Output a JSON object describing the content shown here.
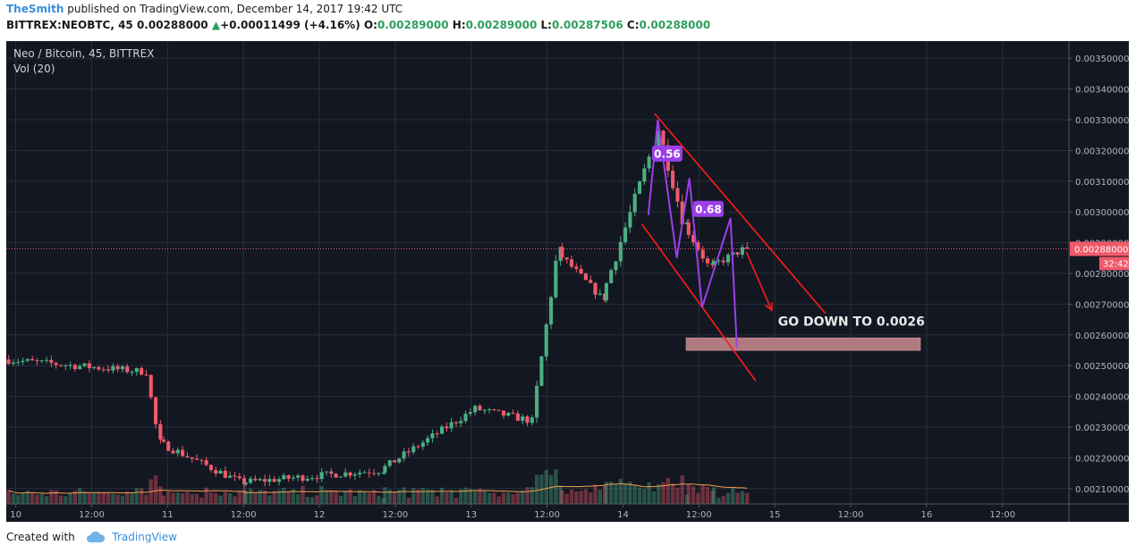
{
  "header": {
    "author": "TheSmith",
    "published_text": "published on TradingView.com, December 14, 2017 19:42 UTC",
    "symbol_line_prefix": "BITTREX:NEOBTC, 45",
    "last_value": "0.00288000",
    "change": "+0.00011499 (+4.16%)",
    "open_label": "O:",
    "open_value": "0.00289000",
    "high_label": "H:",
    "high_value": "0.00289000",
    "low_label": "L:",
    "low_value": "0.00287506",
    "close_label": "C:",
    "close_value": "0.00288000",
    "change_icon": "triangle-up-icon"
  },
  "legend": {
    "series_title": "Neo / Bitcoin, 45, BITTREX",
    "volume_title": "Vol (20)"
  },
  "footer": {
    "created_with": "Created with",
    "brand": "TradingView",
    "brand_icon": "cloud-icon"
  },
  "colors": {
    "background": "#131722",
    "up": "#4bae84",
    "down": "#ef5a6a",
    "pattern_line": "#9b3fe8",
    "channel": "#ff1a1a",
    "target_zone": "#b07a80",
    "volume_ma": "#f2a14b"
  },
  "chart_data": {
    "type": "candlestick",
    "y_axis": {
      "min": 0.00205,
      "max": 0.00355,
      "tick_labels": [
        "0.00350000",
        "0.00340000",
        "0.00330000",
        "0.00320000",
        "0.00310000",
        "0.00300000",
        "0.00290000",
        "0.00280000",
        "0.00270000",
        "0.00260000",
        "0.00250000",
        "0.00240000",
        "0.00230000",
        "0.00220000",
        "0.00210000"
      ]
    },
    "x_axis": {
      "tick_labels": [
        "10",
        "12:00",
        "11",
        "12:00",
        "12",
        "12:00",
        "13",
        "12:00",
        "14",
        "12:00",
        "15",
        "12:00",
        "16",
        "12:00"
      ],
      "domain": [
        "2017-12-09 22:30",
        "2017-12-16 22:30"
      ]
    },
    "last_price": {
      "value": 0.00288,
      "label": "0.00288000",
      "countdown": "32:42"
    },
    "candles_segments": [
      {
        "from": "2017-12-09 22:30",
        "to": "2017-12-10 21:00",
        "start": 0.00252,
        "end": 0.00248
      },
      {
        "from": "2017-12-10 21:00",
        "to": "2017-12-10 23:00",
        "start": 0.00248,
        "end": 0.00225
      },
      {
        "from": "2017-12-10 23:00",
        "to": "2017-12-11 12:00",
        "start": 0.00225,
        "end": 0.00212
      },
      {
        "from": "2017-12-11 12:00",
        "to": "2017-12-12 10:00",
        "start": 0.00212,
        "end": 0.00216
      },
      {
        "from": "2017-12-12 10:00",
        "to": "2017-12-13 01:00",
        "start": 0.00216,
        "end": 0.00236
      },
      {
        "from": "2017-12-13 01:00",
        "to": "2017-12-13 10:00",
        "start": 0.00236,
        "end": 0.00232
      },
      {
        "from": "2017-12-13 10:00",
        "to": "2017-12-13 14:00",
        "start": 0.00232,
        "end": 0.00287
      },
      {
        "from": "2017-12-13 14:00",
        "to": "2017-12-13 21:00",
        "start": 0.00287,
        "end": 0.00272
      },
      {
        "from": "2017-12-13 21:00",
        "to": "2017-12-14 06:00",
        "start": 0.00272,
        "end": 0.00327
      },
      {
        "from": "2017-12-14 06:00",
        "to": "2017-12-14 10:00",
        "start": 0.00327,
        "end": 0.00296
      },
      {
        "from": "2017-12-14 10:00",
        "to": "2017-12-14 14:00",
        "start": 0.00296,
        "end": 0.00282
      },
      {
        "from": "2017-12-14 14:00",
        "to": "2017-12-14 19:30",
        "start": 0.00282,
        "end": 0.00288
      }
    ],
    "pattern_points": [
      {
        "t": "2017-12-14 04:00",
        "p": 0.00299
      },
      {
        "t": "2017-12-14 05:30",
        "p": 0.0033
      },
      {
        "t": "2017-12-14 08:30",
        "p": 0.00285
      },
      {
        "t": "2017-12-14 10:30",
        "p": 0.00311
      },
      {
        "t": "2017-12-14 12:30",
        "p": 0.00269
      },
      {
        "t": "2017-12-14 17:00",
        "p": 0.00298
      },
      {
        "t": "2017-12-14 18:00",
        "p": 0.00256
      }
    ],
    "ratio_labels": [
      {
        "text": "0.56",
        "t": "2017-12-14 07:00",
        "p": 0.00319
      },
      {
        "text": "0.68",
        "t": "2017-12-14 13:30",
        "p": 0.00301
      }
    ],
    "channel_lines": [
      {
        "from": {
          "t": "2017-12-14 05:00",
          "p": 0.00332
        },
        "to": {
          "t": "2017-12-15 08:00",
          "p": 0.00267
        }
      },
      {
        "from": {
          "t": "2017-12-14 03:00",
          "p": 0.00296
        },
        "to": {
          "t": "2017-12-14 21:00",
          "p": 0.00245
        }
      }
    ],
    "arrow": {
      "from": {
        "t": "2017-12-14 19:30",
        "p": 0.00287
      },
      "to": {
        "t": "2017-12-14 23:30",
        "p": 0.00268
      }
    },
    "target_zone": {
      "from": "2017-12-14 10:00",
      "to": "2017-12-15 23:00",
      "high": 0.00259,
      "low": 0.00255
    },
    "annotation": {
      "text": "GO DOWN TO 0.0026",
      "t": "2017-12-15 00:30",
      "p": 0.00263
    }
  }
}
